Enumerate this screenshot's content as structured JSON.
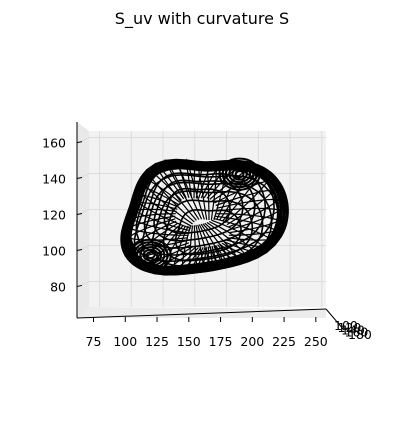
{
  "chart_data": {
    "type": "surface-wireframe-3d",
    "title": "S_uv with curvature S",
    "xlabel": "",
    "ylabel": "",
    "zlabel": "",
    "x_ticks": [
      "75",
      "100",
      "125",
      "150",
      "175",
      "200",
      "225",
      "250"
    ],
    "x_range": [
      62,
      258
    ],
    "z_ticks": [
      "80",
      "100",
      "120",
      "140",
      "160"
    ],
    "z_range": [
      63,
      172
    ],
    "y_ticks": [
      "100",
      "120",
      "140",
      "160",
      "180"
    ],
    "y_range": [
      90,
      190
    ],
    "grid": true,
    "pane_color": "#f2f2f2",
    "grid_color": "#d8d8d8",
    "wire_color": "#000000",
    "surface": {
      "center": [
        160,
        115
      ],
      "lobes": [
        {
          "x": 120,
          "z": 98,
          "strength": 1.0
        },
        {
          "x": 190,
          "z": 143,
          "strength": 0.9
        },
        {
          "x": 132,
          "z": 150,
          "strength": 0.7
        },
        {
          "x": 235,
          "z": 108,
          "strength": 0.5
        }
      ]
    }
  }
}
